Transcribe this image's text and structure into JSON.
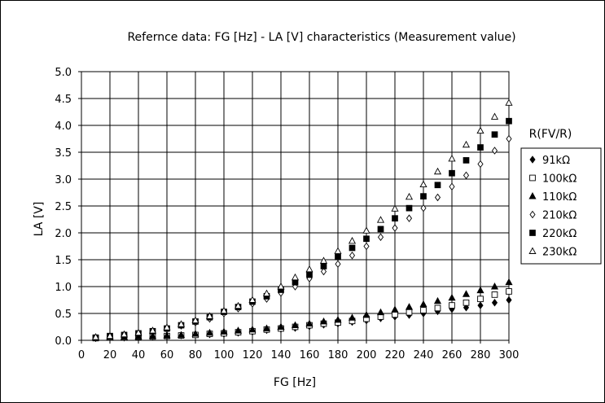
{
  "chart_data": {
    "type": "scatter",
    "title": "Refernce data:  FG [Hz] - LA [V] characteristics (Measurement value)",
    "xlabel": "FG [Hz]",
    "ylabel": "LA [V]",
    "xlim": [
      0,
      300
    ],
    "ylim": [
      0,
      5
    ],
    "grid": true,
    "legend_title": "R(FV/R)",
    "legend_position": "right",
    "x_ticks": [
      "0",
      "20",
      "40",
      "60",
      "80",
      "100",
      "120",
      "140",
      "160",
      "180",
      "200",
      "220",
      "240",
      "260",
      "280",
      "300"
    ],
    "y_ticks": [
      "0.0",
      "0.5",
      "1.0",
      "1.5",
      "2.0",
      "2.5",
      "3.0",
      "3.5",
      "4.0",
      "4.5",
      "5.0"
    ],
    "x": [
      10,
      20,
      30,
      40,
      50,
      60,
      70,
      80,
      90,
      100,
      110,
      120,
      130,
      140,
      150,
      160,
      170,
      180,
      190,
      200,
      210,
      220,
      230,
      240,
      250,
      260,
      270,
      280,
      290,
      300
    ],
    "series": [
      {
        "name": "91kΩ",
        "marker": "diamond-filled",
        "values": [
          0.04,
          0.05,
          0.05,
          0.06,
          0.07,
          0.08,
          0.09,
          0.1,
          0.11,
          0.12,
          0.14,
          0.16,
          0.19,
          0.21,
          0.23,
          0.26,
          0.29,
          0.31,
          0.34,
          0.37,
          0.41,
          0.44,
          0.47,
          0.5,
          0.54,
          0.58,
          0.61,
          0.65,
          0.7,
          0.75
        ]
      },
      {
        "name": "100kΩ",
        "marker": "square-open",
        "values": [
          0.04,
          0.05,
          0.05,
          0.06,
          0.07,
          0.08,
          0.09,
          0.1,
          0.12,
          0.13,
          0.15,
          0.17,
          0.2,
          0.22,
          0.25,
          0.28,
          0.31,
          0.33,
          0.36,
          0.4,
          0.44,
          0.48,
          0.52,
          0.56,
          0.6,
          0.65,
          0.7,
          0.77,
          0.85,
          0.91
        ]
      },
      {
        "name": "110kΩ",
        "marker": "triangle-filled",
        "values": [
          0.05,
          0.06,
          0.06,
          0.07,
          0.08,
          0.09,
          0.1,
          0.12,
          0.14,
          0.16,
          0.18,
          0.2,
          0.22,
          0.25,
          0.28,
          0.31,
          0.35,
          0.38,
          0.42,
          0.47,
          0.52,
          0.57,
          0.62,
          0.67,
          0.73,
          0.79,
          0.86,
          0.93,
          1.0,
          1.08
        ]
      },
      {
        "name": "210kΩ",
        "marker": "diamond-open",
        "values": [
          0.05,
          0.08,
          0.1,
          0.12,
          0.16,
          0.2,
          0.27,
          0.33,
          0.4,
          0.5,
          0.59,
          0.68,
          0.77,
          0.88,
          1.0,
          1.15,
          1.28,
          1.42,
          1.58,
          1.75,
          1.92,
          2.09,
          2.27,
          2.46,
          2.66,
          2.86,
          3.07,
          3.28,
          3.53,
          3.75
        ]
      },
      {
        "name": "220kΩ",
        "marker": "square-filled",
        "values": [
          0.05,
          0.08,
          0.1,
          0.13,
          0.17,
          0.22,
          0.28,
          0.35,
          0.43,
          0.53,
          0.62,
          0.72,
          0.82,
          0.94,
          1.08,
          1.22,
          1.38,
          1.55,
          1.72,
          1.89,
          2.07,
          2.27,
          2.46,
          2.68,
          2.89,
          3.11,
          3.35,
          3.59,
          3.83,
          4.08
        ]
      },
      {
        "name": "230kΩ",
        "marker": "triangle-open",
        "values": [
          0.06,
          0.08,
          0.11,
          0.14,
          0.18,
          0.24,
          0.3,
          0.37,
          0.45,
          0.55,
          0.64,
          0.75,
          0.87,
          1.0,
          1.17,
          1.32,
          1.48,
          1.66,
          1.85,
          2.04,
          2.24,
          2.45,
          2.67,
          2.9,
          3.14,
          3.38,
          3.64,
          3.9,
          4.16,
          4.42
        ]
      }
    ]
  }
}
